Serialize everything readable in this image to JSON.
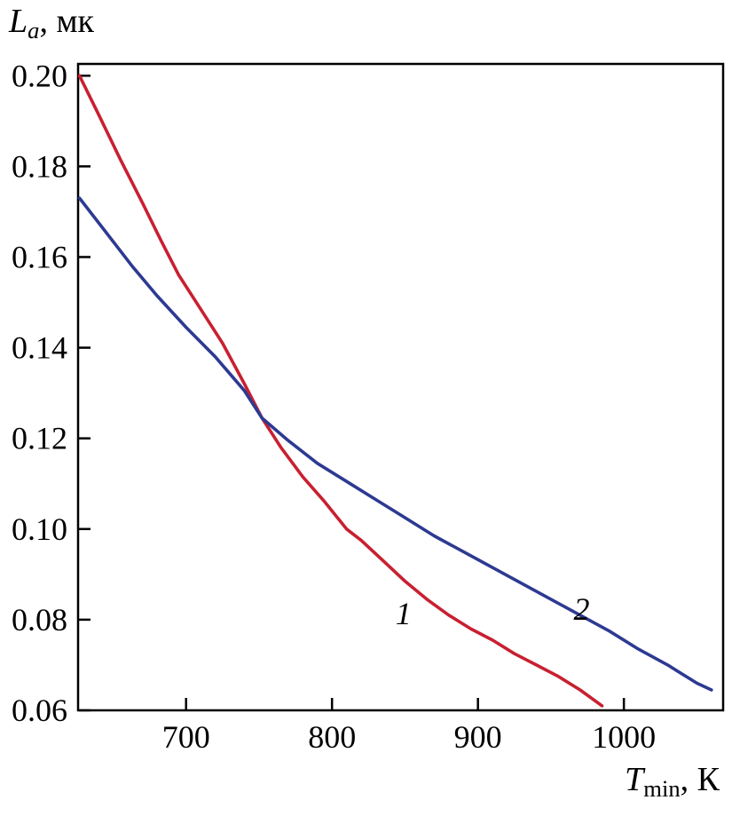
{
  "figure": {
    "ylabel_parts": {
      "main": "L",
      "sub": "a",
      "rest": ", мк"
    },
    "xlabel_parts": {
      "main": "T",
      "sub": "min",
      "rest": ", К"
    }
  },
  "chart_data": {
    "type": "line",
    "title": "",
    "xlabel": "T_min, К",
    "ylabel": "L_a, мк",
    "xlim": [
      626,
      1068
    ],
    "ylim": [
      0.06,
      0.2026
    ],
    "grid": false,
    "frame": true,
    "legend": "none",
    "x_ticks": [
      700,
      800,
      900,
      1000
    ],
    "x_tick_labels": [
      "700",
      "800",
      "900",
      "1000"
    ],
    "y_ticks": [
      0.06,
      0.08,
      0.1,
      0.12,
      0.14,
      0.16,
      0.18,
      0.2
    ],
    "y_tick_labels": [
      "0.06",
      "0.08",
      "0.10",
      "0.12",
      "0.14",
      "0.16",
      "0.18",
      "0.20"
    ],
    "colors": {
      "series1": "#c82031",
      "series2": "#2d3a92",
      "axis": "#000000"
    },
    "series": [
      {
        "name": "1",
        "color": "#c82031",
        "x": [
          627,
          640,
          655,
          670,
          683,
          695,
          710,
          725,
          740,
          752,
          765,
          780,
          795,
          810,
          820,
          835,
          850,
          865,
          880,
          895,
          910,
          925,
          940,
          955,
          970,
          985
        ],
        "y": [
          0.2,
          0.1915,
          0.1815,
          0.172,
          0.1635,
          0.156,
          0.1485,
          0.141,
          0.132,
          0.1245,
          0.118,
          0.1115,
          0.106,
          0.1,
          0.0975,
          0.093,
          0.0885,
          0.0845,
          0.081,
          0.078,
          0.0755,
          0.0725,
          0.07,
          0.0675,
          0.0645,
          0.061
        ]
      },
      {
        "name": "2",
        "color": "#2d3a92",
        "x": [
          627,
          645,
          663,
          680,
          700,
          720,
          740,
          752,
          770,
          790,
          810,
          830,
          850,
          870,
          890,
          910,
          930,
          950,
          970,
          990,
          1010,
          1030,
          1050,
          1060
        ],
        "y": [
          0.173,
          0.1655,
          0.158,
          0.1515,
          0.1445,
          0.138,
          0.1305,
          0.1245,
          0.1195,
          0.1145,
          0.1105,
          0.1065,
          0.1025,
          0.0985,
          0.095,
          0.0915,
          0.088,
          0.0845,
          0.081,
          0.0775,
          0.0735,
          0.07,
          0.066,
          0.0645
        ]
      }
    ],
    "annotations": [
      {
        "text": "1",
        "x": 849,
        "y": 0.079
      },
      {
        "text": "2",
        "x": 971,
        "y": 0.08
      }
    ]
  }
}
